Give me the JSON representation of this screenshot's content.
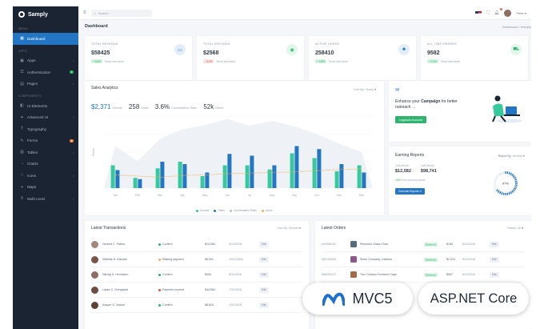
{
  "app": {
    "name": "Samply",
    "window_title": "Dashboard"
  },
  "sidebar": {
    "sections": [
      {
        "title": "MENU",
        "items": [
          {
            "label": "Dashboard",
            "icon": "grid-icon",
            "active": true
          }
        ]
      },
      {
        "title": "APPS",
        "items": [
          {
            "label": "Apps",
            "icon": "apps-icon",
            "arrow": "›"
          },
          {
            "label": "Authentication",
            "icon": "lock-icon",
            "badge": "2",
            "badge_color": "green"
          },
          {
            "label": "Pages",
            "icon": "file-icon",
            "arrow": "›"
          }
        ]
      },
      {
        "title": "COMPONENTS",
        "items": [
          {
            "label": "UI Elements",
            "icon": "layers-icon"
          },
          {
            "label": "Advanced UI",
            "icon": "sparkle-icon",
            "arrow": "›"
          },
          {
            "label": "Typography",
            "icon": "type-icon"
          },
          {
            "label": "Forms",
            "icon": "form-icon",
            "badge": "6",
            "badge_color": "orange"
          },
          {
            "label": "Tables",
            "icon": "table-icon",
            "arrow": "›"
          },
          {
            "label": "Charts",
            "icon": "chart-icon"
          },
          {
            "label": "Icons",
            "icon": "star-icon",
            "arrow": "›"
          },
          {
            "label": "Maps",
            "icon": "map-icon"
          },
          {
            "label": "Multi Level",
            "icon": "share-icon",
            "arrow": "›"
          }
        ]
      }
    ]
  },
  "topbar": {
    "search_placeholder": "Search...",
    "user_name": "Peter",
    "notif_count": "2"
  },
  "header": {
    "title": "Dashboard",
    "breadcrumb": "Dashboard / Samply"
  },
  "stats": [
    {
      "label": "TOTAL REVENUE",
      "value": "$58425",
      "delta": "+ 5.6%",
      "delta_dir": "up",
      "sub": "Since last week",
      "icon": "wallet-icon",
      "color": "#2276c3"
    },
    {
      "label": "TOTAL REFUNDS",
      "value": "$2568",
      "delta": "- 3.1%",
      "delta_dir": "down",
      "sub": "Since last week",
      "icon": "refund-icon",
      "color": "#2fb36f"
    },
    {
      "label": "ACTIVE USERS",
      "value": "258410",
      "delta": "+ 2.8%",
      "delta_dir": "up",
      "sub": "Since last week",
      "icon": "users-icon",
      "color": "#2276c3"
    },
    {
      "label": "ALL TIME ORDERS",
      "value": "9582",
      "delta": "+ 2.4%",
      "delta_dir": "up",
      "sub": "Since last week",
      "icon": "cart-icon",
      "color": "#2fb36f"
    }
  ],
  "sales": {
    "title": "Sales Analytics",
    "sort_label": "Sort By:",
    "sort_value": "Yearly",
    "kpis": [
      {
        "value": "$2,371",
        "label": "Income"
      },
      {
        "value": "258",
        "label": "Sales"
      },
      {
        "value": "3.6%",
        "label": "Conversation Ratio"
      },
      {
        "value": "52k",
        "label": "Users"
      }
    ]
  },
  "chart_data": {
    "type": "bar",
    "categories": [
      "Jan",
      "Feb",
      "Mar",
      "Apr",
      "May",
      "Jun",
      "Jul",
      "Aug",
      "Sep",
      "Oct",
      "Nov",
      "Dec"
    ],
    "series": [
      {
        "name": "Income",
        "values": [
          38,
          17,
          33,
          44,
          20,
          38,
          38,
          31,
          58,
          50,
          28,
          38
        ],
        "color": "#37c89b"
      },
      {
        "name": "Sales",
        "values": [
          30,
          15,
          44,
          40,
          26,
          57,
          54,
          38,
          70,
          65,
          40,
          26
        ],
        "color": "#2276c3"
      }
    ],
    "line_series": [
      {
        "name": "Conversation Ratio",
        "values": [
          22,
          20,
          18,
          21,
          22,
          24,
          25,
          26,
          27,
          29,
          31,
          32
        ],
        "color": "#f0b05a"
      },
      {
        "name": "Users",
        "values": [
          70,
          45,
          82,
          98,
          105,
          115,
          104,
          112,
          103,
          90,
          74,
          60
        ],
        "color": "#e9ecf1"
      }
    ],
    "ylim": [
      0,
      120
    ],
    "ylabel": "Points",
    "legend": "bottom",
    "grid": true
  },
  "campaign": {
    "text_pre": "Enhance your ",
    "text_bold": "Campaign",
    "text_post": " for better outreach →",
    "button": "Upgrade Account"
  },
  "earning": {
    "title": "Earning Reports",
    "report_label": "Report By:",
    "report_value": "Monthly",
    "this_month_label": "This Month",
    "this_month_value": "$12,582",
    "last_month_label": "Last Month",
    "last_month_value": "$98,741",
    "note_delta": "12%",
    "note_text": " From previous period",
    "button": "Generate Reports",
    "gauge_value": 67,
    "gauge_text": "67%"
  },
  "transactions": {
    "title": "Latest Transactions",
    "sort_label": "Sort By:",
    "sort_value": "Recent",
    "rows": [
      {
        "name": "Herbert C. Patton",
        "status": "Confirm",
        "status_color": "#2fb36f",
        "amount": "$14,584",
        "date": "5/12/2016",
        "action": "Edit",
        "avatar": "#a1887f"
      },
      {
        "name": "Mathias N. Klausen",
        "status": "Waiting payment",
        "status_color": "#f0b05a",
        "amount": "$8,541",
        "date": "10/11/2016",
        "action": "Edit",
        "avatar": "#795548"
      },
      {
        "name": "Nikolaj S. Henriksen",
        "status": "Confirm",
        "status_color": "#2fb36f",
        "amount": "$954",
        "date": "8/11/2016",
        "action": "Edit",
        "avatar": "#8d6e63"
      },
      {
        "name": "Lasse C. Overgaard",
        "status": "Payment expired",
        "status_color": "#e74c3c",
        "amount": "$44,584",
        "date": "7/11/2016",
        "action": "Edit",
        "avatar": "#6d4c41"
      },
      {
        "name": "Kasper S. Jessen",
        "status": "Confirm",
        "status_color": "#2fb36f",
        "amount": "$8,844",
        "date": "1/11/2016",
        "action": "Edit",
        "avatar": "#5d4037"
      }
    ]
  },
  "orders": {
    "title": "Latest Orders",
    "status_label": "Status:",
    "status_value": "All",
    "rows": [
      {
        "id": "#12354781",
        "name": "Riverston Glass Chair",
        "status": "Delivered",
        "price": "$185",
        "date": "5/12/2016",
        "action": "Edit",
        "thumb": "#5a6b80"
      },
      {
        "id": "#52140300",
        "name": "Shine Company Catalina",
        "status": "Delivered",
        "price": "$1,024",
        "date": "5/12/2016",
        "action": "Edit",
        "thumb": "#8a5a8a"
      },
      {
        "id": "#96254137",
        "name": "Trex Outdoor Furniture Cape",
        "status": "Delivered",
        "price": "$657",
        "date": "5/12/2016",
        "action": "Edit",
        "thumb": "#a06e4c"
      }
    ]
  },
  "badges": {
    "mvc": "MVC5",
    "asp": "ASP.NET Core"
  }
}
